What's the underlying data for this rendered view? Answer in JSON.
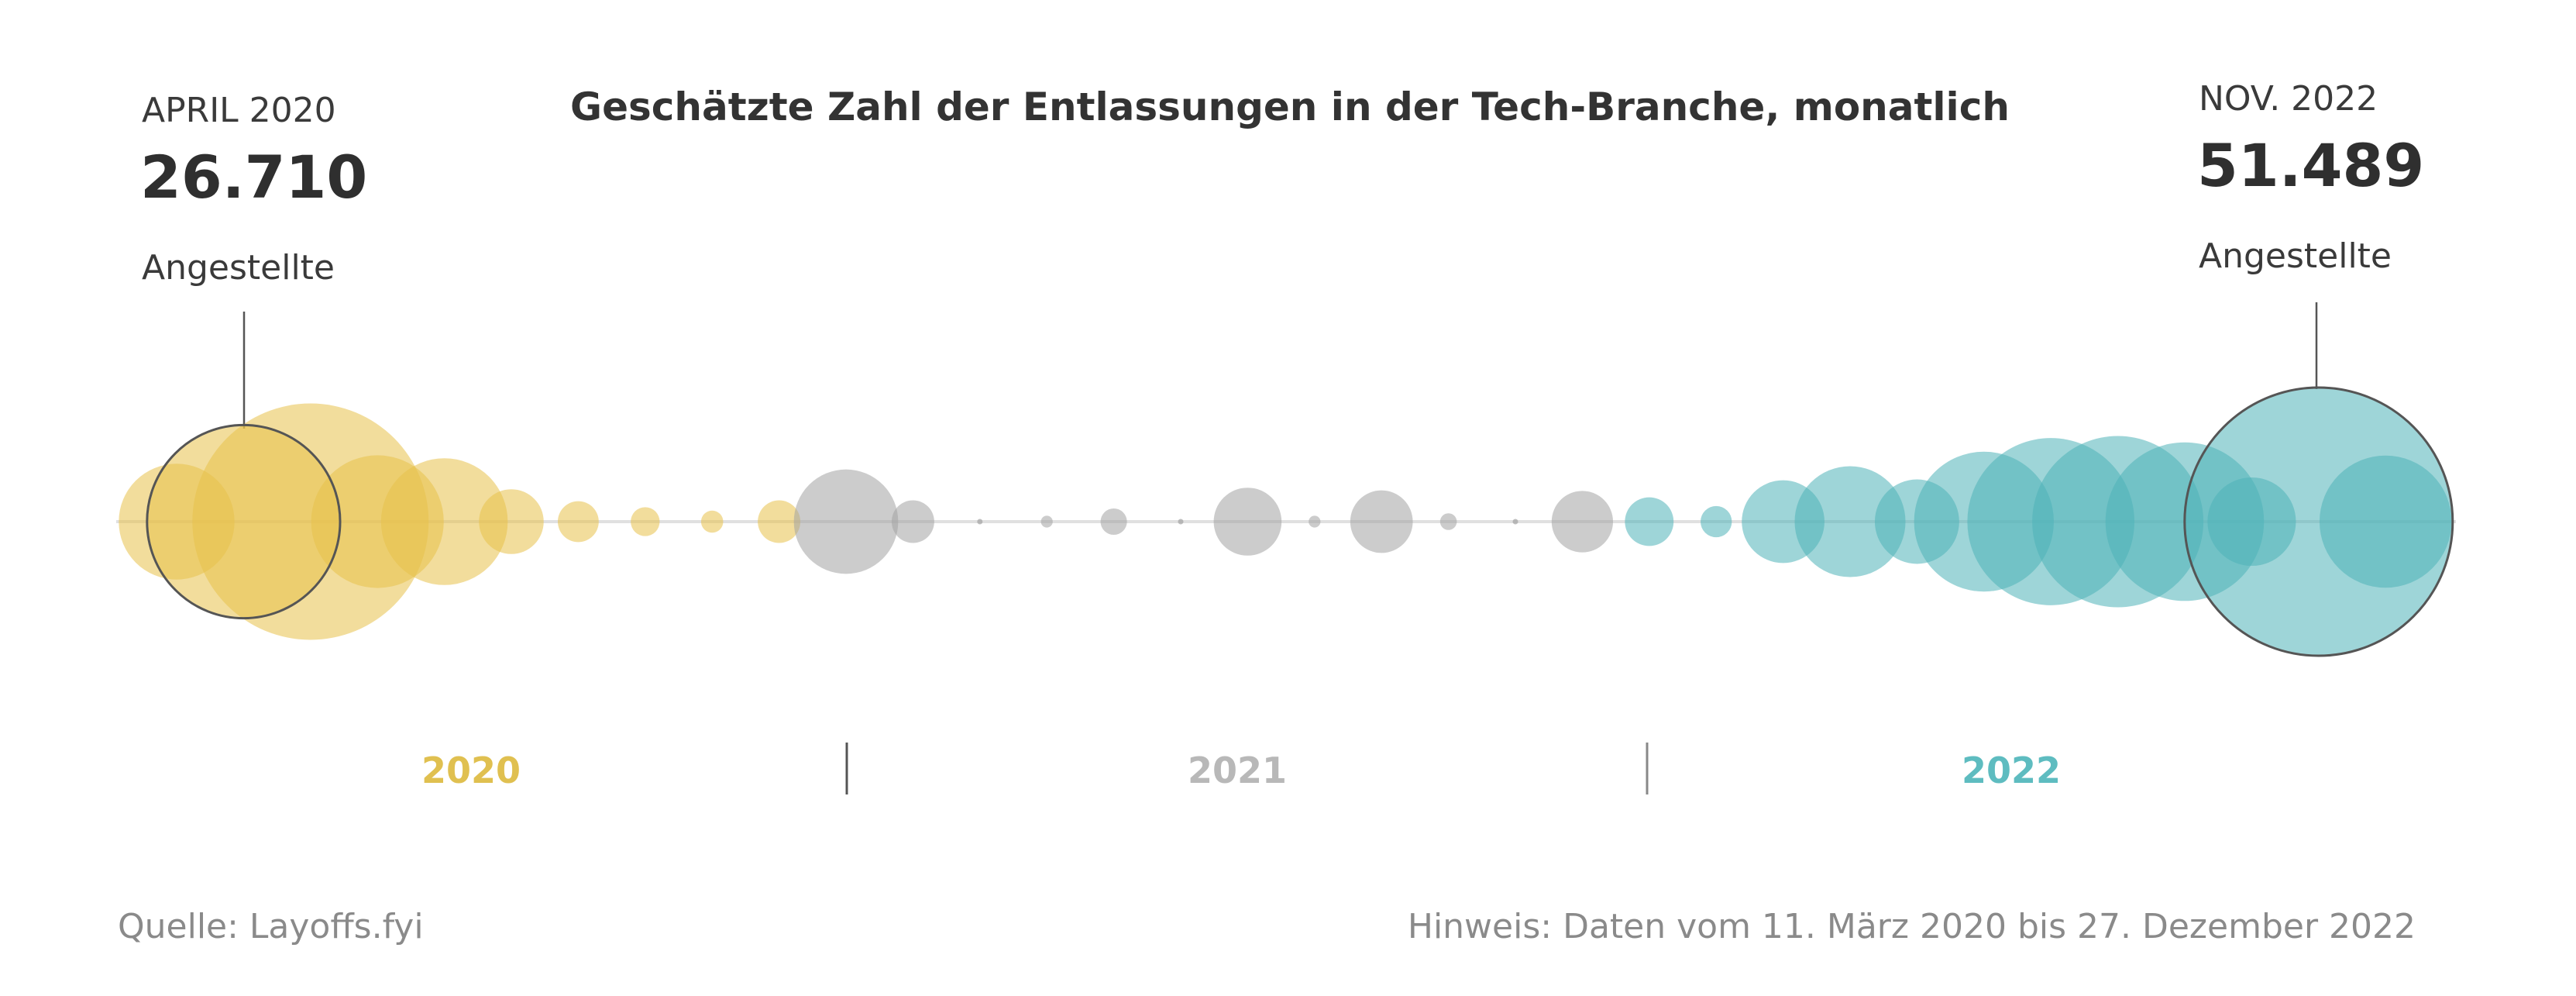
{
  "chart_data": {
    "type": "bubble-timeline",
    "title": "Geschätzte Zahl der Entlassungen in der Tech-Branche, monatlich",
    "months": [
      "2020-03",
      "2020-04",
      "2020-05",
      "2020-06",
      "2020-07",
      "2020-08",
      "2020-09",
      "2020-10",
      "2020-11",
      "2020-12",
      "2021-01",
      "2021-02",
      "2021-03",
      "2021-04",
      "2021-05",
      "2021-06",
      "2021-07",
      "2021-08",
      "2021-09",
      "2021-10",
      "2021-11",
      "2021-12",
      "2022-01",
      "2022-02",
      "2022-03",
      "2022-04",
      "2022-05",
      "2022-06",
      "2022-07",
      "2022-08",
      "2022-09",
      "2022-10",
      "2022-11",
      "2022-12"
    ],
    "values": [
      9600,
      26710,
      40000,
      12600,
      11500,
      3000,
      1200,
      600,
      350,
      1300,
      7800,
      1300,
      0,
      100,
      500,
      0,
      3300,
      100,
      2800,
      200,
      0,
      2700,
      1700,
      700,
      4900,
      8800,
      5100,
      14000,
      20000,
      21000,
      18000,
      5600,
      51489,
      12500
    ],
    "year_labels": [
      {
        "label": "2020",
        "color": "#e0c050"
      },
      {
        "label": "2021",
        "color": "#b8b8b8"
      },
      {
        "label": "2022",
        "color": "#5ebcc0"
      }
    ],
    "colors": {
      "2020": "#e8c14a",
      "2021": "#a3a3a3",
      "2022": "#4fb3b8",
      "axis": "#e0e0e0"
    },
    "annotations": [
      {
        "month": "2020-04",
        "label": "APRIL 2020",
        "value": "26.710",
        "unit": "Angestellte"
      },
      {
        "month": "2022-11",
        "label": "NOV. 2022",
        "value": "51.489",
        "unit": "Angestellte"
      }
    ]
  },
  "footer": {
    "source": "Quelle: Layoffs.fyi",
    "note": "Hinweis: Daten vom 11. März 2020 bis 27. Dezember 2022"
  }
}
